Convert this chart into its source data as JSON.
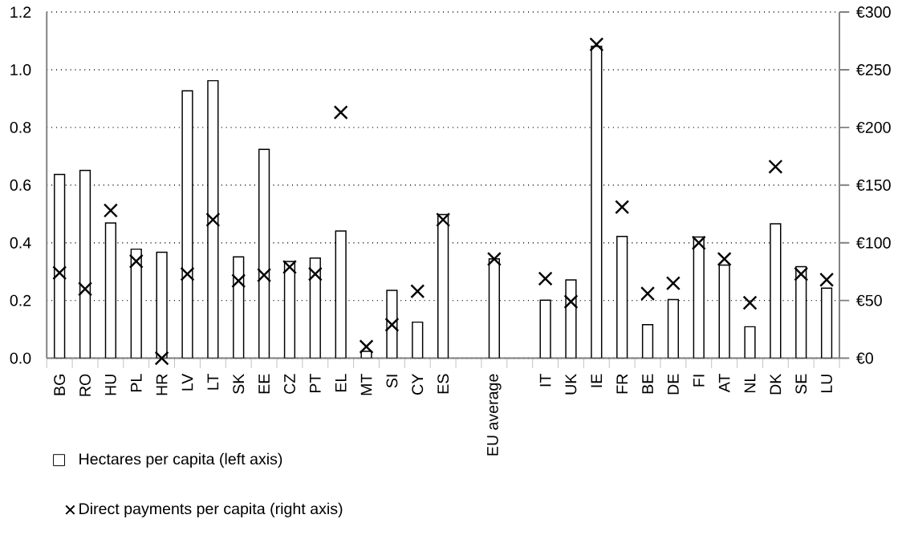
{
  "chart_data": {
    "type": "bar",
    "categories": [
      "BG",
      "RO",
      "HU",
      "PL",
      "HR",
      "LV",
      "LT",
      "SK",
      "EE",
      "CZ",
      "PT",
      "EL",
      "MT",
      "SI",
      "CY",
      "ES",
      null,
      "EU average",
      null,
      "IT",
      "UK",
      "IE",
      "FR",
      "BE",
      "DE",
      "FI",
      "AT",
      "NL",
      "DK",
      "SE",
      "LU"
    ],
    "series": [
      {
        "name": "Hectares per capita (left axis)",
        "color": "#ffffff",
        "values": [
          0.637,
          0.651,
          0.469,
          0.378,
          0.367,
          0.927,
          0.962,
          0.351,
          0.724,
          0.335,
          0.347,
          0.441,
          0.024,
          0.235,
          0.125,
          0.498,
          null,
          0.344,
          null,
          0.201,
          0.271,
          1.081,
          0.422,
          0.116,
          0.203,
          0.42,
          0.323,
          0.109,
          0.466,
          0.317,
          0.243
        ]
      },
      {
        "name": "Direct payments per capita (right axis)",
        "type": "scatter",
        "axis": "y2",
        "marker": "cross",
        "color": "#000000",
        "values": [
          74,
          60,
          128,
          84,
          0,
          73,
          120,
          67,
          72,
          79,
          73,
          213,
          10,
          29,
          58,
          120,
          null,
          86,
          null,
          69,
          49,
          272,
          131,
          56,
          65,
          100,
          86,
          48,
          166,
          73,
          68
        ]
      }
    ],
    "ylim": [
      0,
      1.2
    ],
    "yticks": [
      {
        "value": 0,
        "label": "0.0"
      },
      {
        "value": 0.2,
        "label": "0.2"
      },
      {
        "value": 0.4,
        "label": "0.4"
      },
      {
        "value": 0.6,
        "label": "0.6"
      },
      {
        "value": 0.8,
        "label": "0.8"
      },
      {
        "value": 1.0,
        "label": "1.0"
      },
      {
        "value": 1.2,
        "label": "1.2"
      }
    ],
    "y2lim": [
      0,
      300
    ],
    "y2ticks": [
      {
        "value": 0,
        "label": "€0"
      },
      {
        "value": 50,
        "label": "€50"
      },
      {
        "value": 100,
        "label": "€100"
      },
      {
        "value": 150,
        "label": "€150"
      },
      {
        "value": 200,
        "label": "€200"
      },
      {
        "value": 250,
        "label": "€250"
      },
      {
        "value": 300,
        "label": "€300"
      }
    ],
    "grid": "y",
    "legend": "bottom left"
  }
}
